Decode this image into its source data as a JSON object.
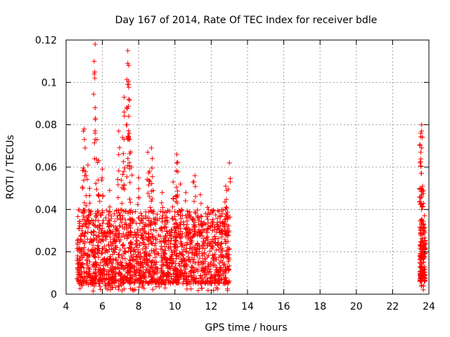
{
  "chart_data": {
    "type": "scatter",
    "title": "Day 167 of 2014, Rate Of TEC Index for receiver bdle",
    "xlabel": "GPS time / hours",
    "ylabel": "ROTI / TECUs",
    "xlim": [
      4,
      24
    ],
    "ylim": [
      0,
      0.12
    ],
    "grid": true,
    "marker": "+",
    "marker_color": "#ff0000",
    "xticks": [
      4,
      6,
      8,
      10,
      12,
      14,
      16,
      18,
      20,
      22,
      24
    ],
    "xtick_labels": [
      "4",
      "6",
      "8",
      "10",
      "12",
      "14",
      "16",
      "18",
      "20",
      "22",
      "24"
    ],
    "yticks": [
      0,
      0.02,
      0.04,
      0.06,
      0.08,
      0.1,
      0.12
    ],
    "ytick_labels": [
      "0",
      "0.02",
      "0.04",
      "0.06",
      "0.08",
      "0.1",
      "0.12"
    ],
    "series": [
      {
        "name": "ROTI",
        "segments": [
          {
            "x_range": [
              4.6,
              13.0
            ],
            "typical_range": [
              0.005,
              0.03
            ],
            "point_count": 1800
          },
          {
            "x_range": [
              23.5,
              23.8
            ],
            "typical_range": [
              0.006,
              0.025
            ],
            "point_count": 160
          }
        ],
        "notable_points": [
          {
            "x": 5.0,
            "y": 0.078
          },
          {
            "x": 4.95,
            "y": 0.077
          },
          {
            "x": 5.05,
            "y": 0.069
          },
          {
            "x": 5.1,
            "y": 0.056
          },
          {
            "x": 5.2,
            "y": 0.061
          },
          {
            "x": 5.3,
            "y": 0.05
          },
          {
            "x": 5.6,
            "y": 0.118
          },
          {
            "x": 5.55,
            "y": 0.104
          },
          {
            "x": 5.6,
            "y": 0.088
          },
          {
            "x": 5.7,
            "y": 0.073
          },
          {
            "x": 5.8,
            "y": 0.063
          },
          {
            "x": 6.0,
            "y": 0.059
          },
          {
            "x": 6.4,
            "y": 0.049
          },
          {
            "x": 6.9,
            "y": 0.077
          },
          {
            "x": 7.1,
            "y": 0.074
          },
          {
            "x": 7.2,
            "y": 0.093
          },
          {
            "x": 7.2,
            "y": 0.086
          },
          {
            "x": 7.4,
            "y": 0.115
          },
          {
            "x": 7.4,
            "y": 0.109
          },
          {
            "x": 7.45,
            "y": 0.108
          },
          {
            "x": 7.45,
            "y": 0.099
          },
          {
            "x": 7.35,
            "y": 0.088
          },
          {
            "x": 7.45,
            "y": 0.084
          },
          {
            "x": 7.5,
            "y": 0.073
          },
          {
            "x": 7.6,
            "y": 0.06
          },
          {
            "x": 8.0,
            "y": 0.055
          },
          {
            "x": 8.5,
            "y": 0.067
          },
          {
            "x": 8.7,
            "y": 0.069
          },
          {
            "x": 8.75,
            "y": 0.064
          },
          {
            "x": 8.6,
            "y": 0.058
          },
          {
            "x": 9.3,
            "y": 0.048
          },
          {
            "x": 9.9,
            "y": 0.053
          },
          {
            "x": 10.1,
            "y": 0.066
          },
          {
            "x": 10.1,
            "y": 0.062
          },
          {
            "x": 10.3,
            "y": 0.052
          },
          {
            "x": 10.6,
            "y": 0.048
          },
          {
            "x": 11.0,
            "y": 0.053
          },
          {
            "x": 11.1,
            "y": 0.056
          },
          {
            "x": 11.4,
            "y": 0.047
          },
          {
            "x": 11.8,
            "y": 0.041
          },
          {
            "x": 12.6,
            "y": 0.038
          },
          {
            "x": 12.8,
            "y": 0.051
          },
          {
            "x": 12.85,
            "y": 0.049
          },
          {
            "x": 13.0,
            "y": 0.062
          },
          {
            "x": 23.6,
            "y": 0.08
          },
          {
            "x": 23.6,
            "y": 0.077
          },
          {
            "x": 23.55,
            "y": 0.076
          },
          {
            "x": 23.6,
            "y": 0.069
          },
          {
            "x": 23.55,
            "y": 0.067
          },
          {
            "x": 23.65,
            "y": 0.051
          },
          {
            "x": 23.7,
            "y": 0.049
          },
          {
            "x": 23.6,
            "y": 0.046
          },
          {
            "x": 23.6,
            "y": 0.04
          }
        ]
      }
    ]
  }
}
